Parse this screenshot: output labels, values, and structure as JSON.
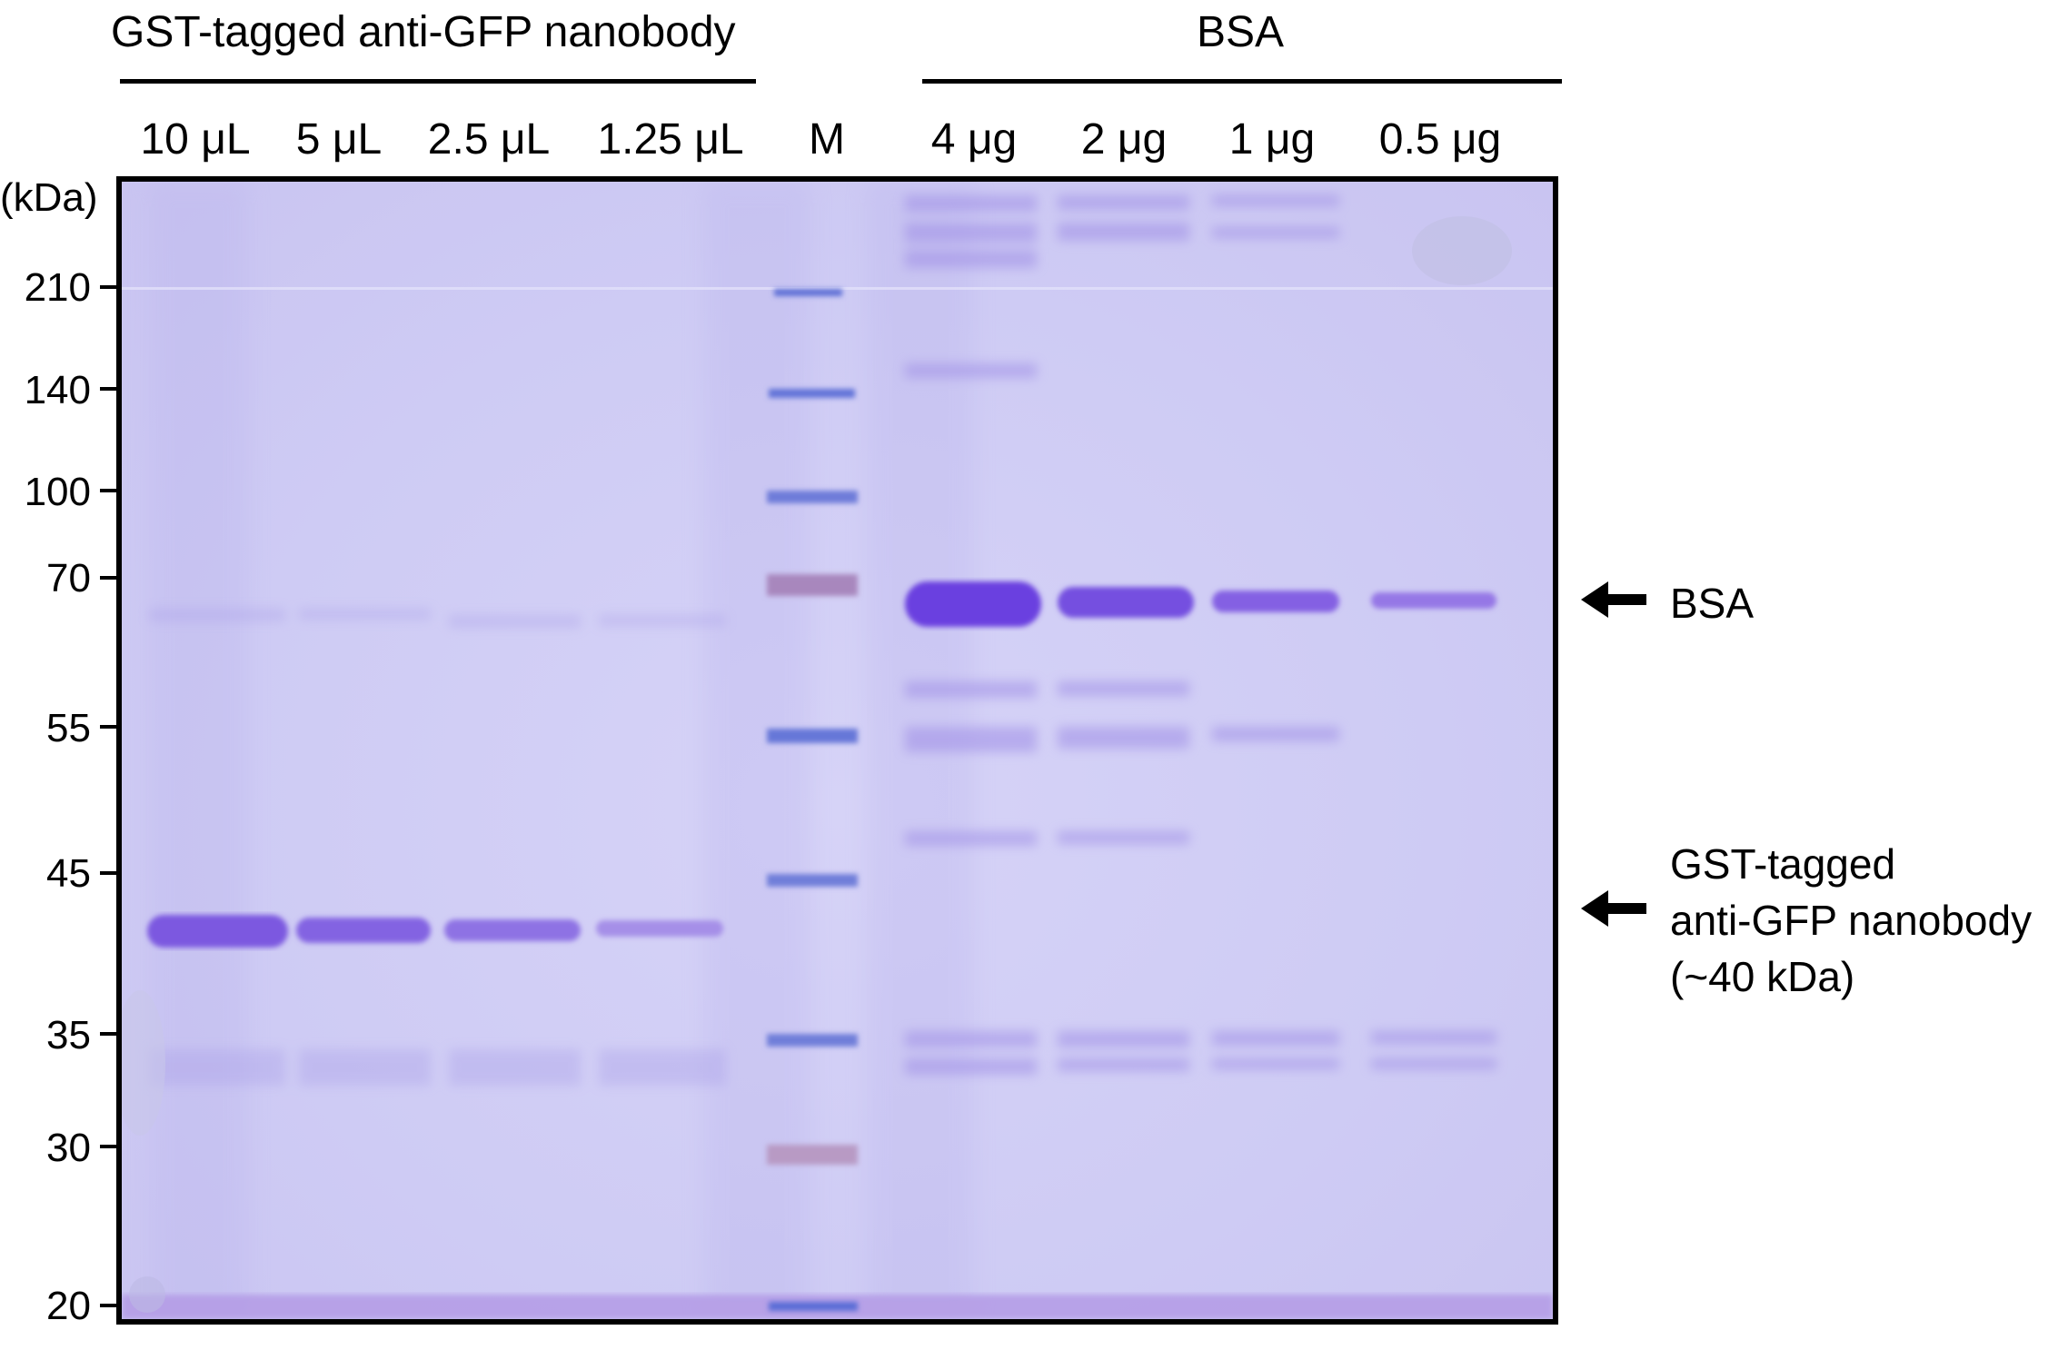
{
  "header": {
    "group_left_title": "GST-tagged anti-GFP nanobody",
    "group_right_title": "BSA"
  },
  "lanes": [
    {
      "label": "10 μL"
    },
    {
      "label": "5 μL"
    },
    {
      "label": "2.5 μL"
    },
    {
      "label": "1.25 μL"
    },
    {
      "label": "M"
    },
    {
      "label": "4 μg"
    },
    {
      "label": "2 μg"
    },
    {
      "label": "1 μg"
    },
    {
      "label": "0.5 μg"
    }
  ],
  "marker": {
    "unit_label": "(kDa)",
    "sizes": [
      "210",
      "140",
      "100",
      "70",
      "55",
      "45",
      "35",
      "30",
      "20"
    ]
  },
  "annotations": {
    "bsa": "BSA",
    "nanobody_line1": "GST-tagged",
    "nanobody_line2": "anti-GFP nanobody",
    "nanobody_line3": "(~40 kDa)"
  },
  "colors": {
    "gel_background": "#cfcbf4",
    "band_main": "#7a55e0",
    "marker_band": "#6a7ad8",
    "marker_pink": "#b88bb8"
  }
}
